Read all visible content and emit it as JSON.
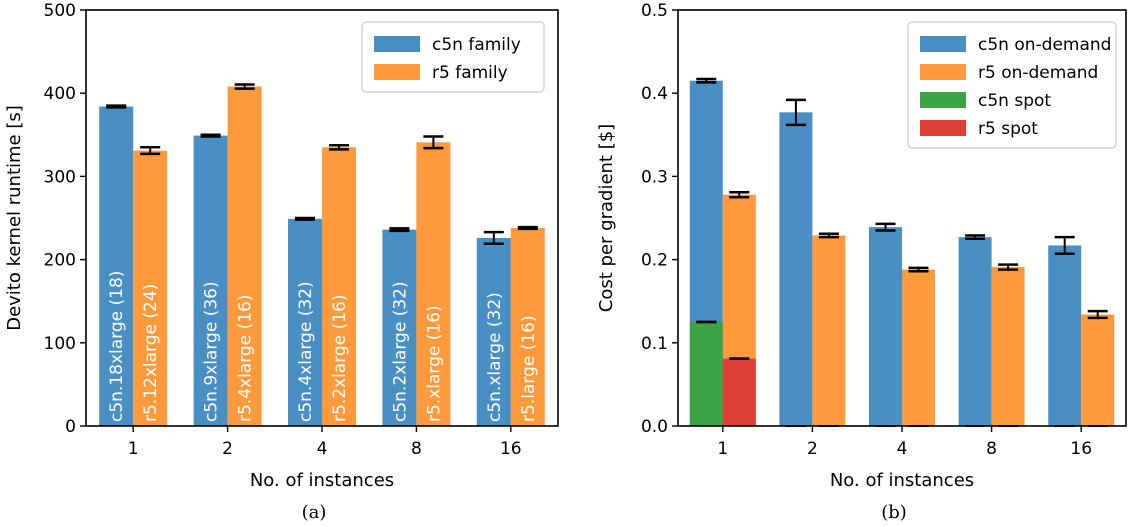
{
  "colors": {
    "c5n": "#4a8fc4",
    "r5": "#ff9a3c",
    "c5n_spot": "#3ba344",
    "r5_spot": "#df4035",
    "error": "#000000"
  },
  "chart_data": [
    {
      "type": "bar",
      "caption": "(a)",
      "categories": [
        "1",
        "2",
        "4",
        "8",
        "16"
      ],
      "xlabel": "No. of instances",
      "ylabel": "Devito kernel runtime [s]",
      "ylim": [
        0,
        500
      ],
      "yticks": [
        "0",
        "100",
        "200",
        "300",
        "400",
        "500"
      ],
      "legend_position": "top-right",
      "grid": false,
      "series": [
        {
          "name": "c5n family",
          "color_key": "c5n",
          "values": [
            384,
            349,
            249,
            236,
            226
          ],
          "errors": [
            1,
            1,
            1,
            1.5,
            7
          ],
          "bar_labels": [
            "c5n.18xlarge (18)",
            "c5n.9xlarge (36)",
            "c5n.4xlarge (32)",
            "c5n.2xlarge (32)",
            "c5n.xlarge (32)"
          ]
        },
        {
          "name": "r5 family",
          "color_key": "r5",
          "values": [
            331,
            408,
            335,
            341,
            238
          ],
          "errors": [
            4,
            2.5,
            2.5,
            7,
            1
          ],
          "bar_labels": [
            "r5.12xlarge (24)",
            "r5.4xlarge (16)",
            "r5.2xlarge (16)",
            "r5.xlarge (16)",
            "r5.large (16)"
          ]
        }
      ]
    },
    {
      "type": "bar",
      "caption": "(b)",
      "categories": [
        "1",
        "2",
        "4",
        "8",
        "16"
      ],
      "xlabel": "No. of instances",
      "ylabel": "Cost per gradient [$]",
      "ylim": [
        0,
        0.5
      ],
      "yticks": [
        "0.0",
        "0.1",
        "0.2",
        "0.3",
        "0.4",
        "0.5"
      ],
      "legend_position": "top-right",
      "grid": false,
      "series": [
        {
          "name": "c5n on-demand",
          "color_key": "c5n",
          "group": 0,
          "values": [
            0.415,
            0.377,
            0.239,
            0.227,
            0.217
          ],
          "errors": [
            0.002,
            0.015,
            0.004,
            0.002,
            0.01
          ]
        },
        {
          "name": "r5 on-demand",
          "color_key": "r5",
          "group": 1,
          "values": [
            0.278,
            0.229,
            0.188,
            0.191,
            0.134
          ],
          "errors": [
            0.003,
            0.002,
            0.002,
            0.003,
            0.004
          ]
        },
        {
          "name": "c5n spot",
          "color_key": "c5n_spot",
          "group": 0,
          "values": [
            0.125,
            0,
            0,
            0,
            0
          ],
          "errors": [
            0,
            0,
            0,
            0,
            0
          ]
        },
        {
          "name": "r5 spot",
          "color_key": "r5_spot",
          "group": 1,
          "values": [
            0.081,
            0,
            0,
            0,
            0
          ],
          "errors": [
            0,
            0,
            0,
            0,
            0
          ]
        }
      ]
    }
  ]
}
